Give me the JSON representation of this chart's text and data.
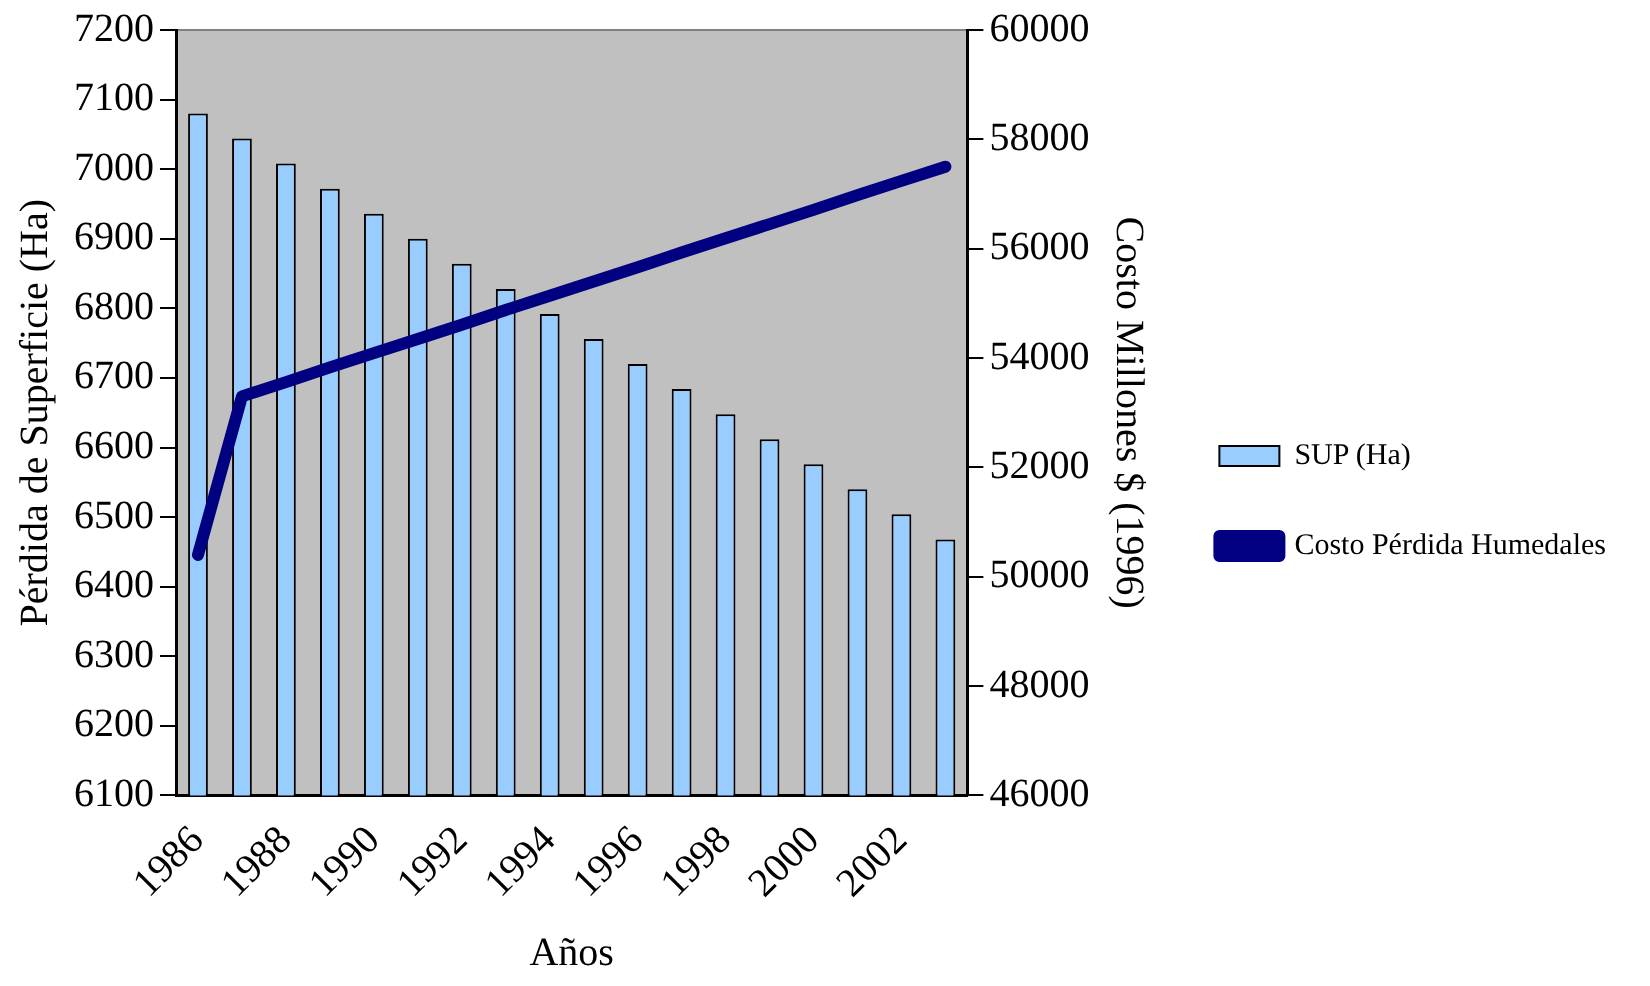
{
  "chart_data": {
    "type": "bar",
    "xlabel": "Años",
    "ylabel": "Pérdida de Superficie (Ha)",
    "y2label": "Costo Millones $ (1996)",
    "categories": [
      "1986",
      null,
      "1988",
      null,
      "1990",
      null,
      "1992",
      null,
      "1994",
      null,
      "1996",
      null,
      "1998",
      null,
      "2000",
      null,
      "2002",
      null
    ],
    "series": [
      {
        "name": "SUP (Ha)",
        "color": "#99ccff",
        "values": [
          7080,
          7044,
          7008,
          6972,
          6936,
          6900,
          6864,
          6828,
          6792,
          6756,
          6720,
          6684,
          6648,
          6612,
          6576,
          6540,
          6504,
          6468
        ]
      },
      {
        "name": "Costo Pérdida Humedales",
        "type": "line",
        "axis": "y2",
        "color": "#000080",
        "values": [
          50400,
          53300,
          53560,
          53830,
          54090,
          54350,
          54610,
          54880,
          55140,
          55400,
          55660,
          55930,
          56190,
          56450,
          56710,
          56980,
          57240,
          57500
        ]
      }
    ],
    "ylim": [
      6100,
      7200
    ],
    "yticks": [
      6100,
      6200,
      6300,
      6400,
      6500,
      6600,
      6700,
      6800,
      6900,
      7000,
      7100,
      7200
    ],
    "y2lim": [
      46000,
      60000
    ],
    "y2ticks": [
      46000,
      48000,
      50000,
      52000,
      54000,
      56000,
      58000,
      60000
    ],
    "grid": false,
    "legend": "right"
  }
}
